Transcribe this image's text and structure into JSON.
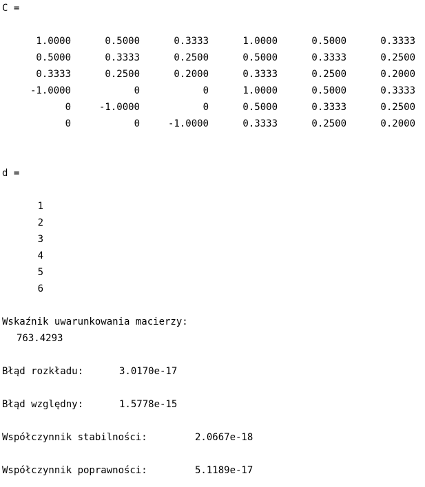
{
  "matrix_c": {
    "label": "C =",
    "rows": [
      [
        "1.0000",
        "0.5000",
        "0.3333",
        "1.0000",
        "0.5000",
        "0.3333"
      ],
      [
        "0.5000",
        "0.3333",
        "0.2500",
        "0.5000",
        "0.3333",
        "0.2500"
      ],
      [
        "0.3333",
        "0.2500",
        "0.2000",
        "0.3333",
        "0.2500",
        "0.2000"
      ],
      [
        "-1.0000",
        "0",
        "0",
        "1.0000",
        "0.5000",
        "0.3333"
      ],
      [
        "0",
        "-1.0000",
        "0",
        "0.5000",
        "0.3333",
        "0.2500"
      ],
      [
        "0",
        "0",
        "-1.0000",
        "0.3333",
        "0.2500",
        "0.2000"
      ]
    ]
  },
  "vector_d": {
    "label": "d =",
    "values": [
      "1",
      "2",
      "3",
      "4",
      "5",
      "6"
    ]
  },
  "results": {
    "condition_label": "Wskaźnik uwarunkowania macierzy:",
    "condition_value": "763.4293",
    "decomposition_error_label": "Błąd rozkładu:",
    "decomposition_error_value": "3.0170e-17",
    "relative_error_label": "Błąd względny:",
    "relative_error_value": "1.5778e-15",
    "stability_label": "Współczynnik stabilności:",
    "stability_value": "2.0667e-18",
    "correctness_label": "Współczynnik poprawności:",
    "correctness_value": "5.1189e-17"
  }
}
